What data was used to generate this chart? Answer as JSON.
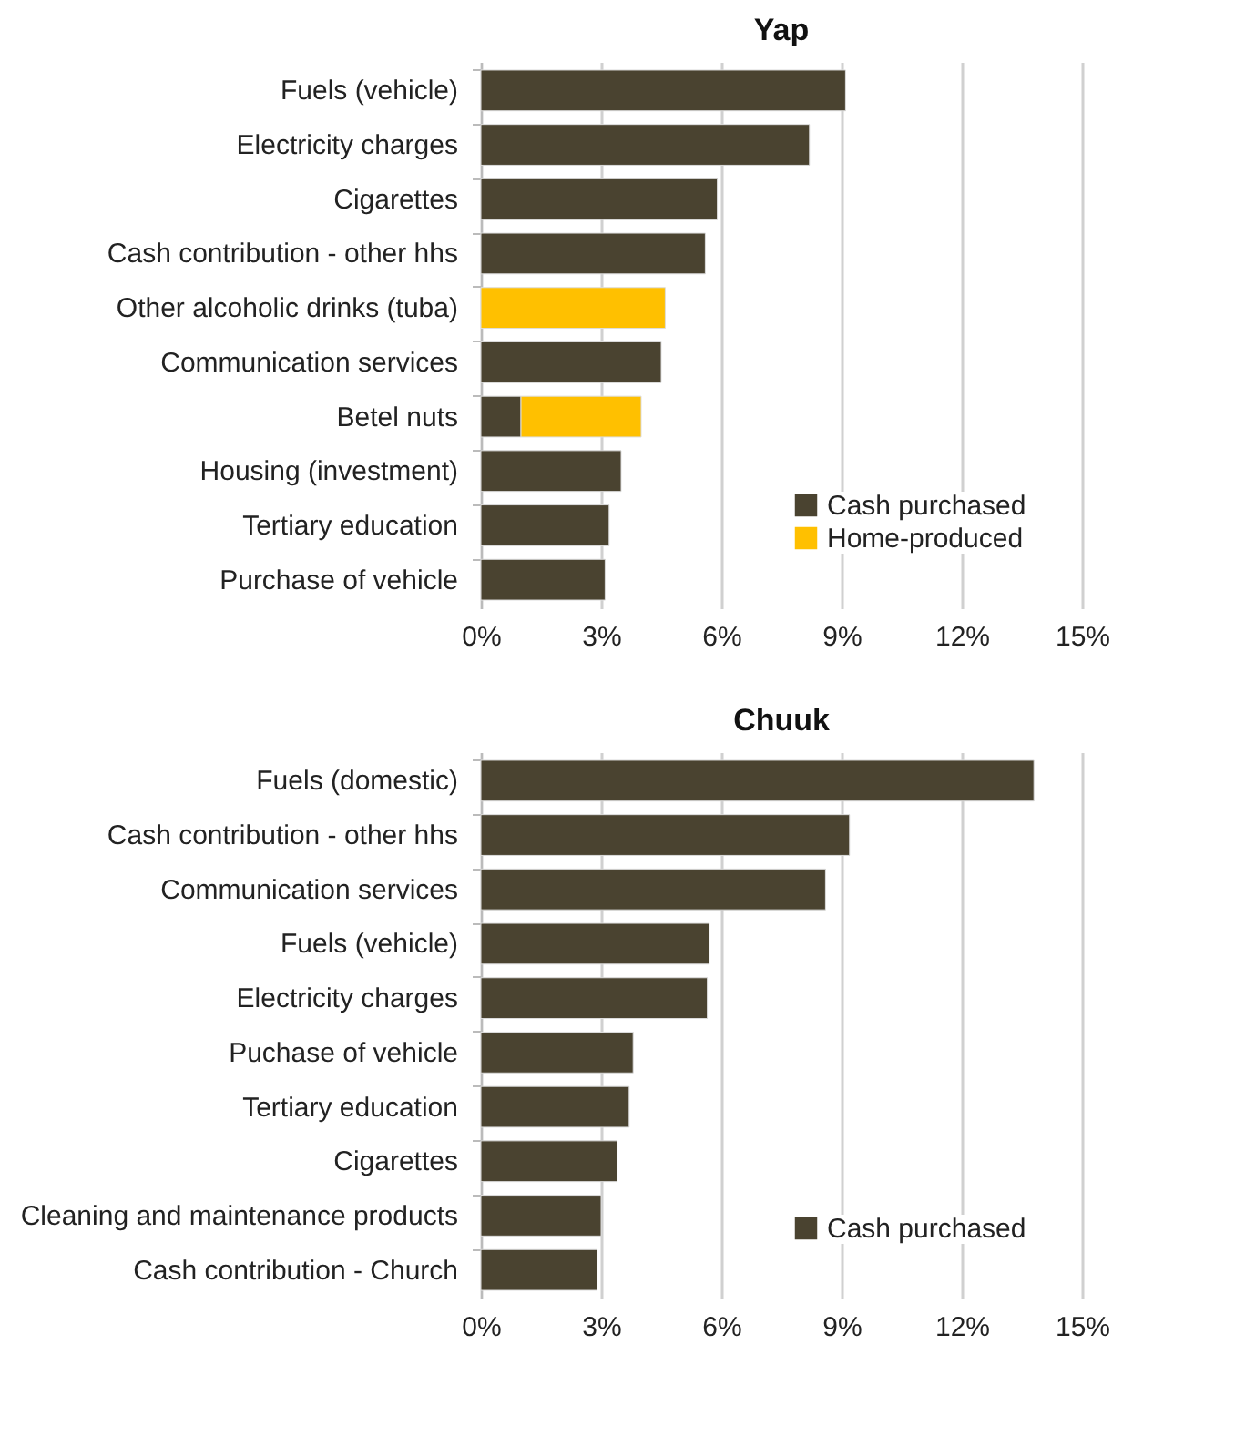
{
  "chart_data": [
    {
      "type": "bar",
      "orientation": "horizontal",
      "stacked": true,
      "title": "Yap",
      "categories": [
        "Fuels (vehicle)",
        "Electricity charges",
        "Cigarettes",
        "Cash contribution - other hhs",
        "Other alcoholic drinks (tuba)",
        "Communication services",
        "Betel nuts",
        "Housing (investment)",
        "Tertiary education",
        "Purchase of vehicle"
      ],
      "series": [
        {
          "name": "Cash purchased",
          "color": "#4a4330",
          "values": [
            9.1,
            8.2,
            5.9,
            5.6,
            null,
            4.5,
            1.0,
            3.5,
            3.2,
            3.1
          ]
        },
        {
          "name": "Home-produced",
          "color": "#ffc000",
          "values": [
            null,
            null,
            null,
            null,
            4.6,
            null,
            3.0,
            null,
            null,
            null
          ]
        }
      ],
      "xlim": [
        0,
        15
      ],
      "xticks": [
        {
          "value": 0,
          "label": "0%"
        },
        {
          "value": 3,
          "label": "3%"
        },
        {
          "value": 6,
          "label": "6%"
        },
        {
          "value": 9,
          "label": "9%"
        },
        {
          "value": 12,
          "label": "12%"
        },
        {
          "value": 15,
          "label": "15%"
        }
      ],
      "grid": "x",
      "legend": "bottom right"
    },
    {
      "type": "bar",
      "orientation": "horizontal",
      "title": "Chuuk",
      "categories": [
        "Fuels (domestic)",
        "Cash contribution - other hhs",
        "Communication services",
        "Fuels (vehicle)",
        "Electricity charges",
        "Puchase of vehicle",
        "Tertiary education",
        "Cigarettes",
        "Cleaning and maintenance products",
        "Cash contribution - Church"
      ],
      "series": [
        {
          "name": "Cash purchased",
          "color": "#4a4330",
          "values": [
            13.8,
            9.2,
            8.6,
            5.7,
            5.65,
            3.8,
            3.7,
            3.4,
            3.0,
            2.9
          ]
        }
      ],
      "xlim": [
        0,
        15
      ],
      "xticks": [
        {
          "value": 0,
          "label": "0%"
        },
        {
          "value": 3,
          "label": "3%"
        },
        {
          "value": 6,
          "label": "6%"
        },
        {
          "value": 9,
          "label": "9%"
        },
        {
          "value": 12,
          "label": "12%"
        },
        {
          "value": 15,
          "label": "15%"
        }
      ],
      "grid": "x",
      "legend": "bottom right"
    }
  ]
}
